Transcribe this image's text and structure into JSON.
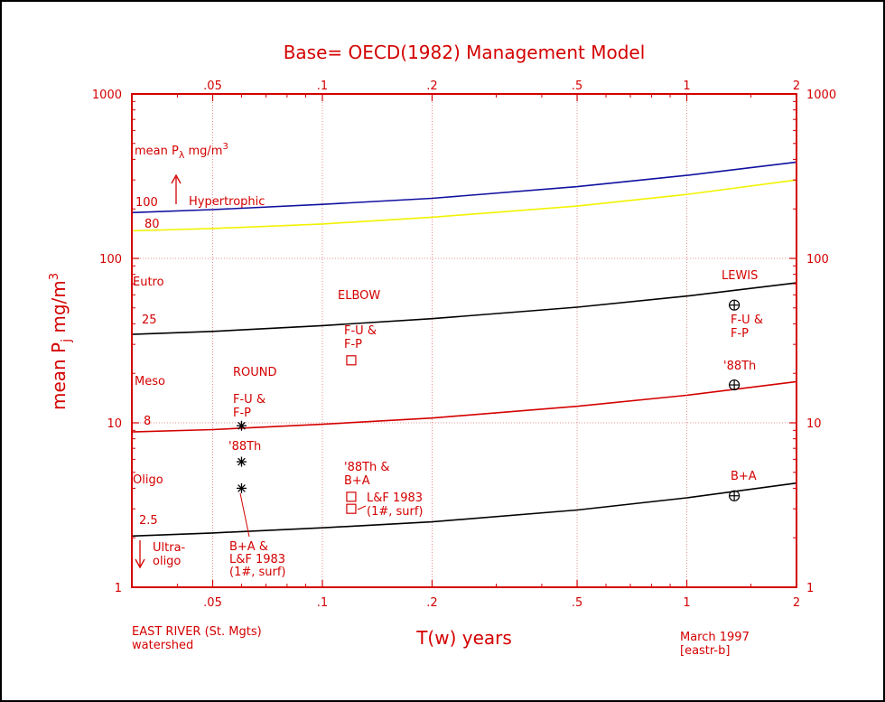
{
  "colors": {
    "axis": "#d40000",
    "grid": "#e07070",
    "curve_100": "#1010a0",
    "curve_80": "#f2f200",
    "curve_25": "#000000",
    "curve_8": "#d40000",
    "curve_2_5": "#000000",
    "marker": "#000000"
  },
  "chart_data": {
    "type": "scatter",
    "title": "Base= OECD(1982) Management Model",
    "xlabel": "T(w) years",
    "ylabel_main": "mean P",
    "ylabel_sub": "j",
    "ylabel_unit": " mg/m",
    "ylabel_sup": "3",
    "x_scale": "log",
    "y_scale": "log",
    "xlim": [
      0.03,
      2
    ],
    "ylim": [
      1,
      1000
    ],
    "x_ticks": [
      0.05,
      0.1,
      0.2,
      0.5,
      1,
      2
    ],
    "x_tick_labels": [
      ".05",
      ".1",
      ".2",
      ".5",
      "1",
      "2"
    ],
    "y_ticks": [
      1,
      10,
      100,
      1000
    ],
    "y_tick_labels": [
      "1",
      "10",
      "100",
      "1000"
    ],
    "grid": true,
    "curves": [
      {
        "label": "100",
        "x": [
          0.03,
          0.05,
          0.1,
          0.2,
          0.5,
          1,
          2
        ],
        "y": [
          190,
          198,
          213,
          232,
          273,
          320,
          385
        ]
      },
      {
        "label": "80",
        "x": [
          0.03,
          0.05,
          0.1,
          0.2,
          0.5,
          1,
          2
        ],
        "y": [
          147,
          152,
          162,
          178,
          208,
          245,
          300
        ]
      },
      {
        "label": "25",
        "x": [
          0.03,
          0.05,
          0.1,
          0.2,
          0.5,
          1,
          2
        ],
        "y": [
          34.5,
          36,
          39,
          43,
          50.5,
          59,
          71
        ]
      },
      {
        "label": "8",
        "x": [
          0.03,
          0.05,
          0.1,
          0.2,
          0.5,
          1,
          2
        ],
        "y": [
          8.8,
          9.1,
          9.8,
          10.7,
          12.6,
          14.7,
          17.8
        ]
      },
      {
        "label": "2.5",
        "x": [
          0.03,
          0.05,
          0.1,
          0.2,
          0.5,
          1,
          2
        ],
        "y": [
          2.05,
          2.14,
          2.3,
          2.5,
          2.95,
          3.5,
          4.3
        ]
      }
    ],
    "points": [
      {
        "group": "ROUND",
        "marker": "star",
        "x": 0.06,
        "y": 9.6
      },
      {
        "group": "ROUND",
        "marker": "star",
        "x": 0.06,
        "y": 5.8
      },
      {
        "group": "ROUND",
        "marker": "star",
        "x": 0.06,
        "y": 4.0
      },
      {
        "group": "ELBOW",
        "marker": "square",
        "x": 0.12,
        "y": 24
      },
      {
        "group": "ELBOW",
        "marker": "square",
        "x": 0.12,
        "y": 3.55
      },
      {
        "group": "ELBOW",
        "marker": "square",
        "x": 0.12,
        "y": 3.0
      },
      {
        "group": "LEWIS",
        "marker": "circle-plus",
        "x": 1.35,
        "y": 52
      },
      {
        "group": "LEWIS",
        "marker": "circle-plus",
        "x": 1.35,
        "y": 17
      },
      {
        "group": "LEWIS",
        "marker": "circle-plus",
        "x": 1.35,
        "y": 3.6
      }
    ],
    "left_annotations": {
      "mean_p_prefix": "mean P",
      "mean_p_sub": "λ",
      "mean_p_unit": " mg/m",
      "mean_p_sup": "3",
      "hypertrophic": "Hypertrophic",
      "label_100": "100",
      "label_80": "80",
      "eutro": "Eutro",
      "label_25": "25",
      "meso": "Meso",
      "label_8": "8",
      "oligo": "Oligo",
      "label_2_5": "2.5",
      "ultra_1": "Ultra-",
      "ultra_2": "oligo"
    },
    "annotations": {
      "round": "ROUND",
      "round_fu_1": "F-U &",
      "round_fu_2": "F-P",
      "round_88": "'88Th",
      "round_ba_1": "B+A &",
      "round_ba_2": "L&F 1983",
      "round_ba_3": "(1#, surf)",
      "elbow": "ELBOW",
      "elbow_fu_1": "F-U &",
      "elbow_fu_2": "F-P",
      "elbow_88_1": "'88Th &",
      "elbow_88_2": "B+A",
      "elbow_lf_1": "L&F 1983",
      "elbow_lf_2": "(1#, surf)",
      "lewis": "LEWIS",
      "lewis_fu_1": "F-U &",
      "lewis_fu_2": "F-P",
      "lewis_88": "'88Th",
      "lewis_ba": "B+A"
    },
    "footer": {
      "watershed_1": "EAST RIVER (St. Mgts)",
      "watershed_2": "watershed",
      "date_1": "March 1997",
      "date_2": "[eastr-b]"
    }
  }
}
